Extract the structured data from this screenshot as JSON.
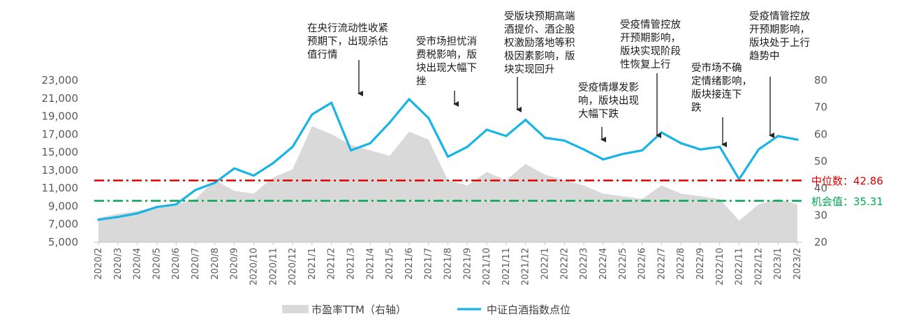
{
  "chart_data": {
    "type": "line",
    "title": "",
    "xlabel": "",
    "ylabel": "",
    "ylim_left": [
      5000,
      23000
    ],
    "ylim_right": [
      20,
      80
    ],
    "yticks_left": [
      "5,000",
      "7,000",
      "9,000",
      "11,000",
      "13,000",
      "15,000",
      "17,000",
      "19,000",
      "21,000",
      "23,000"
    ],
    "yticks_right": [
      "20",
      "30",
      "40",
      "50",
      "60",
      "70",
      "80"
    ],
    "x": [
      "2020/2",
      "2020/3",
      "2020/4",
      "2020/5",
      "2020/6",
      "2020/7",
      "2020/8",
      "2020/9",
      "2020/10",
      "2020/11",
      "2020/12",
      "2021/1",
      "2021/2",
      "2021/3",
      "2021/4",
      "2021/5",
      "2021/6",
      "2021/7",
      "2021/8",
      "2021/9",
      "2021/10",
      "2021/11",
      "2021/12",
      "2022/1",
      "2022/2",
      "2022/3",
      "2022/4",
      "2022/5",
      "2022/6",
      "2022/7",
      "2022/8",
      "2022/9",
      "2022/10",
      "2022/11",
      "2022/12",
      "2023/1",
      "2023/2"
    ],
    "grid": false,
    "legend_position": "bottom",
    "series": [
      {
        "name": "市盈率TTM（右轴）",
        "axis": "right",
        "style": "area",
        "color": "#d9d9d9",
        "values": [
          29,
          30.5,
          31.5,
          33,
          34,
          36,
          43,
          39,
          38,
          44,
          47,
          63,
          60,
          56,
          54,
          52,
          61,
          58,
          43,
          41,
          46,
          43,
          49,
          45,
          43,
          41,
          38,
          37,
          36,
          41,
          38,
          37,
          36,
          28,
          34,
          36,
          34
        ]
      },
      {
        "name": "中证白酒指数点位",
        "axis": "left",
        "style": "line",
        "color": "#19b4e6",
        "values": [
          7500,
          7800,
          8200,
          8900,
          9200,
          10800,
          11600,
          13200,
          12400,
          13800,
          15600,
          19200,
          20500,
          15200,
          16000,
          18300,
          20900,
          18800,
          14500,
          15600,
          17500,
          16800,
          18600,
          16600,
          16300,
          15300,
          14200,
          14800,
          15200,
          17200,
          16000,
          15300,
          15600,
          12000,
          15300,
          16800,
          16400
        ]
      }
    ],
    "reference_lines": [
      {
        "label": "中位数：42.86",
        "value": 42.86,
        "axis": "right",
        "color": "#e00000"
      },
      {
        "label": "机会值：35.31",
        "value": 35.31,
        "axis": "right",
        "color": "#00a94f"
      }
    ],
    "annotations": [
      {
        "lines": [
          "在央行流动性收紧",
          "预期下，出现杀估",
          "值行情"
        ],
        "x": "2021/3"
      },
      {
        "lines": [
          "受市场担忧消",
          "费税影响，版",
          "块出现大幅下",
          "挫"
        ],
        "x": "2021/8"
      },
      {
        "lines": [
          "受版块预期高端",
          "酒提价、酒企股",
          "权激励落地等积",
          "极因素影响，版",
          "块实现回升"
        ],
        "x": "2021/11"
      },
      {
        "lines": [
          "受疫情爆发影",
          "响，版块出现",
          "大幅下跌"
        ],
        "x": "2022/3"
      },
      {
        "lines": [
          "受疫情管控放",
          "开预期影响，",
          "版块实现阶段",
          "性恢复上行"
        ],
        "x": "2022/6"
      },
      {
        "lines": [
          "受市场不确",
          "定情绪影响，",
          "版块接连下",
          "跌"
        ],
        "x": "2022/10"
      },
      {
        "lines": [
          "受疫情管控放",
          "开预期影响，",
          "版块处于上行",
          "趋势中"
        ],
        "x": "2022/12"
      }
    ]
  }
}
